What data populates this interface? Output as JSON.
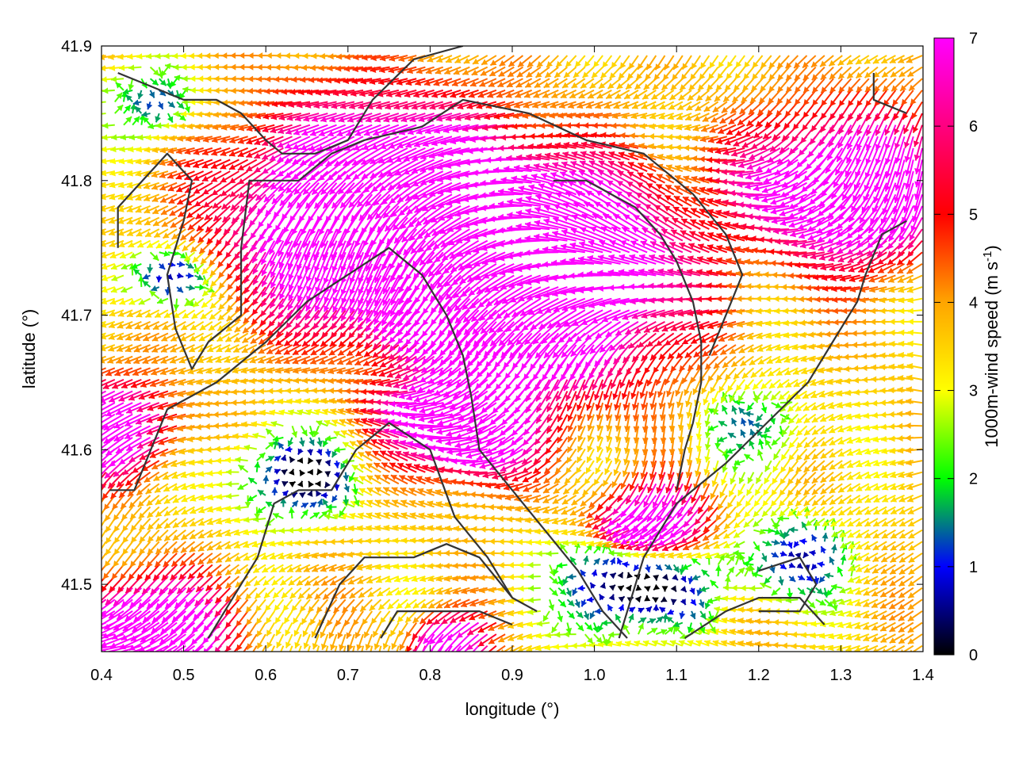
{
  "chart_data": {
    "type": "vector-field",
    "title": "",
    "xlabel": "longitude (°)",
    "ylabel": "latitude (°)",
    "xlim": [
      0.4,
      1.4
    ],
    "ylim": [
      41.45,
      41.9
    ],
    "xticks": [
      {
        "value": 0.4,
        "label": "0.4"
      },
      {
        "value": 0.5,
        "label": "0.5"
      },
      {
        "value": 0.6,
        "label": "0.6"
      },
      {
        "value": 0.7,
        "label": "0.7"
      },
      {
        "value": 0.8,
        "label": "0.8"
      },
      {
        "value": 0.9,
        "label": "0.9"
      },
      {
        "value": 1.0,
        "label": "1.0"
      },
      {
        "value": 1.1,
        "label": "1.1"
      },
      {
        "value": 1.2,
        "label": "1.2"
      },
      {
        "value": 1.3,
        "label": "1.3"
      },
      {
        "value": 1.4,
        "label": "1.4"
      }
    ],
    "yticks": [
      {
        "value": 41.5,
        "label": "41.5"
      },
      {
        "value": 41.6,
        "label": "41.6"
      },
      {
        "value": 41.7,
        "label": "41.7"
      },
      {
        "value": 41.8,
        "label": "41.8"
      },
      {
        "value": 41.9,
        "label": "41.9"
      }
    ],
    "colorbar": {
      "label": "1000m-wind speed (m s",
      "label_exp": "-1",
      "label_close": ")",
      "range": [
        0,
        7
      ],
      "ticks": [
        {
          "value": 0,
          "label": "0"
        },
        {
          "value": 1,
          "label": "1"
        },
        {
          "value": 2,
          "label": "2"
        },
        {
          "value": 3,
          "label": "3"
        },
        {
          "value": 4,
          "label": "4"
        },
        {
          "value": 5,
          "label": "5"
        },
        {
          "value": 6,
          "label": "6"
        },
        {
          "value": 7,
          "label": "7"
        }
      ],
      "colors": [
        "#000000",
        "#0000ff",
        "#00ff00",
        "#ffff00",
        "#ffa500",
        "#ff0000",
        "#ff00ff"
      ]
    },
    "field_blobs": [
      {
        "lon": 0.75,
        "lat": 41.78,
        "speed": 7.8,
        "radius": 0.16
      },
      {
        "lon": 0.95,
        "lat": 41.73,
        "speed": 7.6,
        "radius": 0.15
      },
      {
        "lon": 0.85,
        "lat": 41.62,
        "speed": 6.8,
        "radius": 0.08
      },
      {
        "lon": 1.08,
        "lat": 41.55,
        "speed": 6.6,
        "radius": 0.06
      },
      {
        "lon": 0.47,
        "lat": 41.47,
        "speed": 7.5,
        "radius": 0.08
      },
      {
        "lon": 0.83,
        "lat": 41.46,
        "speed": 7.0,
        "radius": 0.04
      },
      {
        "lon": 1.32,
        "lat": 41.8,
        "speed": 5.8,
        "radius": 0.12
      },
      {
        "lon": 0.42,
        "lat": 41.62,
        "speed": 5.5,
        "radius": 0.07
      },
      {
        "lon": 0.48,
        "lat": 41.73,
        "speed": -3.5,
        "radius": 0.05
      },
      {
        "lon": 0.47,
        "lat": 41.86,
        "speed": -2.5,
        "radius": 0.06
      },
      {
        "lon": 0.64,
        "lat": 41.58,
        "speed": -3.8,
        "radius": 0.07
      },
      {
        "lon": 1.05,
        "lat": 41.5,
        "speed": -4.5,
        "radius": 0.08
      },
      {
        "lon": 1.24,
        "lat": 41.52,
        "speed": -3.0,
        "radius": 0.07
      },
      {
        "lon": 1.2,
        "lat": 41.62,
        "speed": -2.0,
        "radius": 0.07
      }
    ],
    "flow_direction_deg": 205,
    "contours": [
      [
        [
          0.42,
          41.88
        ],
        [
          0.46,
          41.87
        ],
        [
          0.5,
          41.86
        ],
        [
          0.54,
          41.86
        ],
        [
          0.57,
          41.85
        ],
        [
          0.6,
          41.83
        ],
        [
          0.62,
          41.82
        ],
        [
          0.66,
          41.82
        ],
        [
          0.7,
          41.83
        ],
        [
          0.73,
          41.86
        ],
        [
          0.78,
          41.89
        ],
        [
          0.84,
          41.9
        ]
      ],
      [
        [
          0.42,
          41.75
        ],
        [
          0.42,
          41.78
        ],
        [
          0.45,
          41.8
        ],
        [
          0.48,
          41.82
        ],
        [
          0.51,
          41.8
        ],
        [
          0.5,
          41.77
        ],
        [
          0.48,
          41.73
        ],
        [
          0.49,
          41.69
        ],
        [
          0.51,
          41.66
        ],
        [
          0.53,
          41.68
        ],
        [
          0.57,
          41.7
        ],
        [
          0.57,
          41.75
        ],
        [
          0.58,
          41.8
        ],
        [
          0.61,
          41.8
        ],
        [
          0.64,
          41.8
        ],
        [
          0.68,
          41.82
        ],
        [
          0.72,
          41.83
        ],
        [
          0.79,
          41.84
        ],
        [
          0.84,
          41.86
        ],
        [
          0.92,
          41.85
        ],
        [
          0.99,
          41.83
        ],
        [
          1.06,
          41.82
        ],
        [
          1.12,
          41.79
        ],
        [
          1.16,
          41.76
        ],
        [
          1.18,
          41.73
        ],
        [
          1.16,
          41.7
        ],
        [
          1.14,
          41.67
        ]
      ],
      [
        [
          0.41,
          41.57
        ],
        [
          0.44,
          41.57
        ],
        [
          0.48,
          41.63
        ],
        [
          0.54,
          41.65
        ],
        [
          0.6,
          41.68
        ],
        [
          0.65,
          41.71
        ],
        [
          0.7,
          41.73
        ],
        [
          0.75,
          41.75
        ],
        [
          0.79,
          41.73
        ],
        [
          0.82,
          41.7
        ],
        [
          0.84,
          41.67
        ],
        [
          0.85,
          41.64
        ],
        [
          0.86,
          41.6
        ],
        [
          0.9,
          41.57
        ],
        [
          0.94,
          41.54
        ],
        [
          0.98,
          41.51
        ],
        [
          1.01,
          41.48
        ],
        [
          1.04,
          41.46
        ]
      ],
      [
        [
          0.53,
          41.46
        ],
        [
          0.57,
          41.5
        ],
        [
          0.59,
          41.52
        ],
        [
          0.61,
          41.56
        ],
        [
          0.64,
          41.57
        ],
        [
          0.68,
          41.57
        ],
        [
          0.71,
          41.6
        ],
        [
          0.75,
          41.62
        ],
        [
          0.8,
          41.6
        ],
        [
          0.83,
          41.55
        ],
        [
          0.87,
          41.52
        ],
        [
          0.9,
          41.49
        ]
      ],
      [
        [
          0.66,
          41.46
        ],
        [
          0.69,
          41.5
        ],
        [
          0.72,
          41.52
        ],
        [
          0.78,
          41.52
        ],
        [
          0.82,
          41.53
        ],
        [
          0.86,
          41.52
        ],
        [
          0.9,
          41.49
        ],
        [
          0.93,
          41.48
        ]
      ],
      [
        [
          0.74,
          41.46
        ],
        [
          0.76,
          41.48
        ],
        [
          0.81,
          41.48
        ],
        [
          0.86,
          41.48
        ],
        [
          0.9,
          41.47
        ]
      ],
      [
        [
          0.95,
          41.8
        ],
        [
          0.99,
          41.8
        ],
        [
          1.05,
          41.78
        ],
        [
          1.08,
          41.76
        ],
        [
          1.1,
          41.74
        ],
        [
          1.12,
          41.71
        ],
        [
          1.13,
          41.68
        ],
        [
          1.13,
          41.65
        ],
        [
          1.12,
          41.62
        ],
        [
          1.11,
          41.6
        ],
        [
          1.1,
          41.57
        ]
      ],
      [
        [
          1.03,
          41.46
        ],
        [
          1.06,
          41.52
        ],
        [
          1.1,
          41.56
        ],
        [
          1.16,
          41.59
        ],
        [
          1.21,
          41.62
        ],
        [
          1.26,
          41.65
        ],
        [
          1.29,
          41.68
        ],
        [
          1.32,
          41.71
        ],
        [
          1.33,
          41.73
        ],
        [
          1.35,
          41.76
        ],
        [
          1.38,
          41.77
        ]
      ],
      [
        [
          1.34,
          41.88
        ],
        [
          1.34,
          41.86
        ],
        [
          1.38,
          41.85
        ]
      ],
      [
        [
          1.2,
          41.48
        ],
        [
          1.25,
          41.48
        ],
        [
          1.27,
          41.5
        ],
        [
          1.25,
          41.52
        ],
        [
          1.2,
          41.51
        ]
      ],
      [
        [
          1.11,
          41.46
        ],
        [
          1.16,
          41.48
        ],
        [
          1.2,
          41.49
        ],
        [
          1.25,
          41.49
        ],
        [
          1.28,
          41.47
        ]
      ]
    ]
  }
}
